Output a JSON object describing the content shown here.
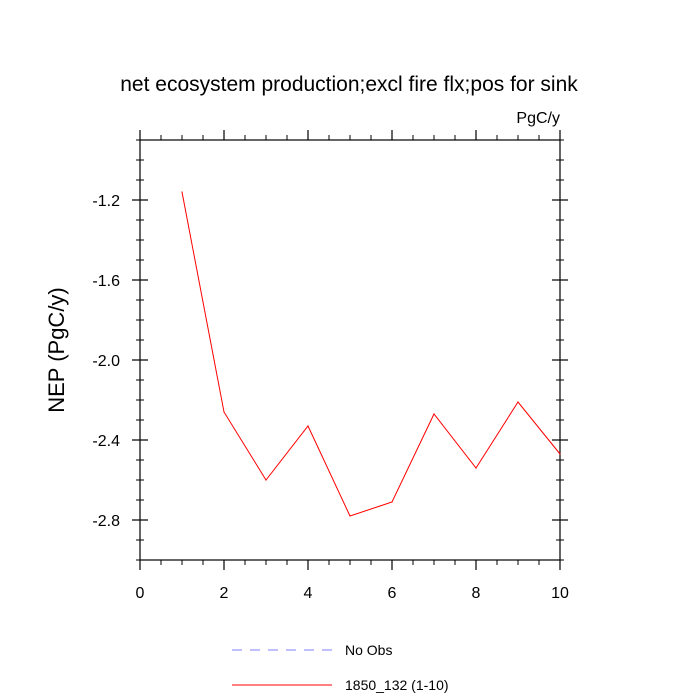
{
  "chart_data": {
    "type": "line",
    "title": "net ecosystem production;excl fire flx;pos for sink",
    "units_label": "PgC/y",
    "ylabel": "NEP  (PgC/y)",
    "xlabel": "",
    "xlim": [
      0,
      10
    ],
    "ylim": [
      -3.0,
      -0.9
    ],
    "x_ticks": [
      0,
      2,
      4,
      6,
      8,
      10
    ],
    "x_tick_labels": [
      "0",
      "2",
      "4",
      "6",
      "8",
      "10"
    ],
    "y_ticks": [
      -1.2,
      -1.6,
      -2.0,
      -2.4,
      -2.8
    ],
    "y_tick_labels": [
      "-1.2",
      "-1.6",
      "-2.0",
      "-2.4",
      "-2.8"
    ],
    "grid": false,
    "series": [
      {
        "name": "1850_132 (1-10)",
        "color": "#ff0000",
        "style": "solid",
        "x": [
          1,
          2,
          3,
          4,
          5,
          6,
          7,
          8,
          9,
          10
        ],
        "y": [
          -1.16,
          -2.26,
          -2.6,
          -2.33,
          -2.78,
          -2.71,
          -2.27,
          -2.54,
          -2.21,
          -2.47
        ]
      }
    ],
    "legend": {
      "placement": "bottom-center",
      "entries": [
        {
          "label": "No Obs",
          "color": "#8080ff",
          "style": "dashed"
        },
        {
          "label": "1850_132 (1-10)",
          "color": "#ff0000",
          "style": "solid"
        }
      ]
    }
  }
}
